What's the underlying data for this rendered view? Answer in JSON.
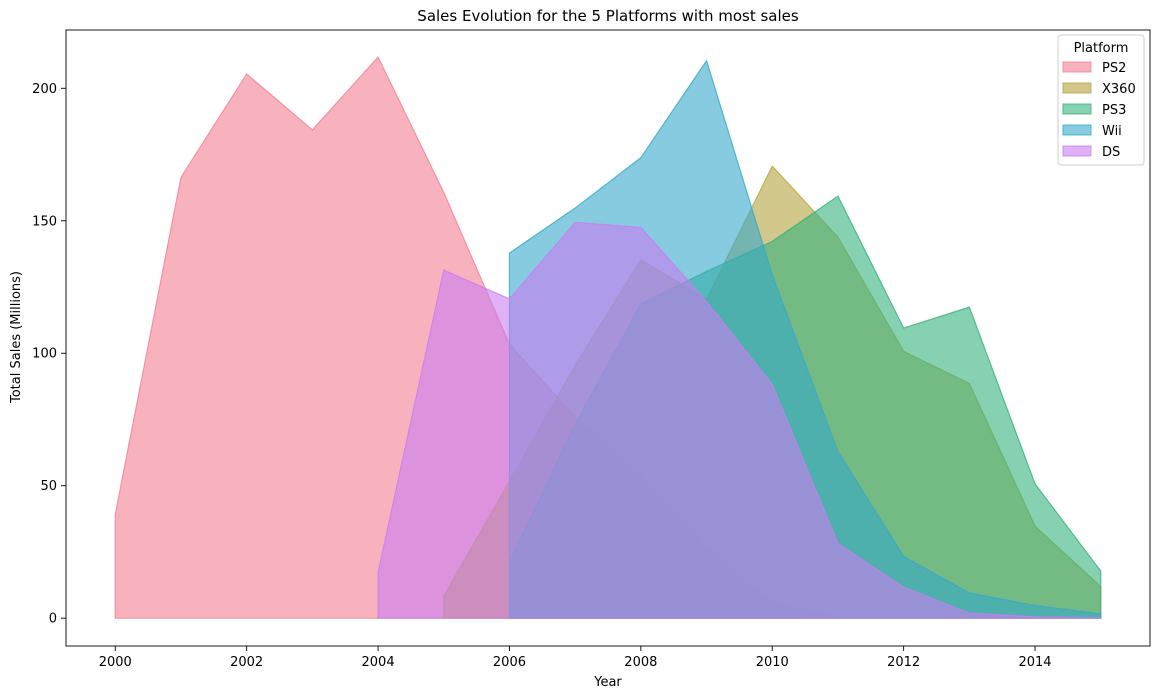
{
  "chart_data": {
    "type": "area",
    "stacked": false,
    "title": "Sales Evolution for the 5 Platforms with most sales",
    "xlabel": "Year",
    "ylabel": "Total Sales (Millions)",
    "xlim": [
      1999.25,
      2015.75
    ],
    "ylim": [
      -10.5,
      222.0
    ],
    "xticks": [
      2000,
      2002,
      2004,
      2006,
      2008,
      2010,
      2012,
      2014
    ],
    "yticks": [
      0,
      50,
      100,
      150,
      200
    ],
    "grid": false,
    "legend": {
      "title": "Platform",
      "position": "top-right"
    },
    "series": [
      {
        "name": "PS2",
        "color": "#f37f92",
        "x": [
          2000,
          2001,
          2002,
          2003,
          2004,
          2005,
          2006,
          2007,
          2008,
          2009,
          2010,
          2011
        ],
        "values": [
          39.2,
          166.4,
          205.4,
          184.3,
          211.8,
          160.7,
          103.4,
          75.9,
          53.9,
          26.4,
          5.6,
          0.5
        ]
      },
      {
        "name": "X360",
        "color": "#b6a43f",
        "x": [
          2005,
          2006,
          2007,
          2008,
          2009,
          2010,
          2011,
          2012,
          2013,
          2014,
          2015
        ],
        "values": [
          8.3,
          51.6,
          95.4,
          135.3,
          120.3,
          170.6,
          143.8,
          100.7,
          88.6,
          34.7,
          11.9
        ]
      },
      {
        "name": "PS3",
        "color": "#36b27d",
        "x": [
          2006,
          2007,
          2008,
          2009,
          2010,
          2011,
          2012,
          2013,
          2014,
          2015
        ],
        "values": [
          20.9,
          73.2,
          118.5,
          130.9,
          142.2,
          159.3,
          109.5,
          117.4,
          50.7,
          17.8
        ]
      },
      {
        "name": "Wii",
        "color": "#36a9c9",
        "x": [
          2006,
          2007,
          2008,
          2009,
          2010,
          2011,
          2012,
          2013,
          2014,
          2015
        ],
        "values": [
          137.8,
          154.8,
          173.8,
          210.4,
          129.6,
          62.9,
          23.3,
          9.5,
          4.8,
          1.6
        ]
      },
      {
        "name": "DS",
        "color": "#c97df1",
        "x": [
          2004,
          2005,
          2006,
          2007,
          2008,
          2009,
          2010,
          2011,
          2012,
          2013,
          2014,
          2015
        ],
        "values": [
          17.3,
          131.4,
          120.5,
          149.4,
          147.5,
          119.5,
          88.2,
          28.2,
          11.7,
          1.9,
          0.5,
          0.1
        ]
      }
    ]
  }
}
